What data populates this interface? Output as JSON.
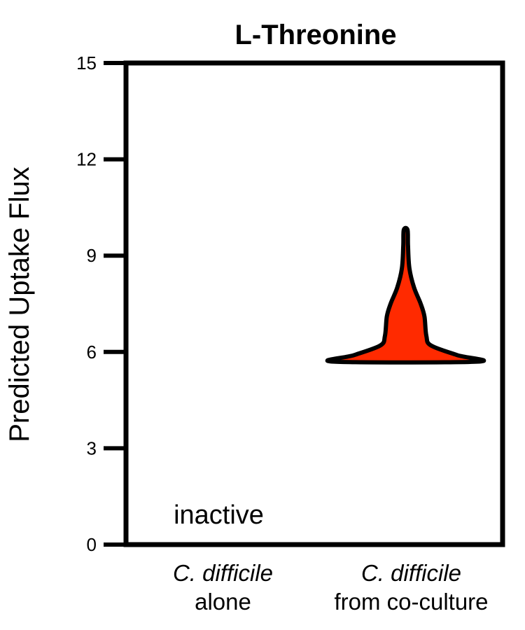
{
  "chart_data": {
    "type": "violin",
    "title": "L-Threonine",
    "ylabel": "Predicted Uptake Flux",
    "xlabel": "",
    "ylim": [
      0,
      15
    ],
    "yticks": [
      0,
      3,
      6,
      9,
      12,
      15
    ],
    "grid": false,
    "colors": {
      "violin_fill": "#ff2a00",
      "outline": "#000000"
    },
    "categories": [
      {
        "line1": "C. difficile",
        "line2": "alone"
      },
      {
        "line1": "C. difficile",
        "line2": "from co-culture"
      }
    ],
    "series": [
      {
        "category_index": 0,
        "active": false,
        "annotation": "inactive"
      },
      {
        "category_index": 1,
        "active": true,
        "min": 5.7,
        "max": 9.8,
        "density_profile": [
          {
            "y": 5.7,
            "halfwidth": 0.76
          },
          {
            "y": 5.9,
            "halfwidth": 0.55
          },
          {
            "y": 6.2,
            "halfwidth": 0.27
          },
          {
            "y": 6.5,
            "halfwidth": 0.22
          },
          {
            "y": 7.1,
            "halfwidth": 0.2
          },
          {
            "y": 7.5,
            "halfwidth": 0.16
          },
          {
            "y": 8.0,
            "halfwidth": 0.09
          },
          {
            "y": 8.6,
            "halfwidth": 0.04
          },
          {
            "y": 9.3,
            "halfwidth": 0.025
          },
          {
            "y": 9.8,
            "halfwidth": 0.02
          }
        ]
      }
    ]
  }
}
